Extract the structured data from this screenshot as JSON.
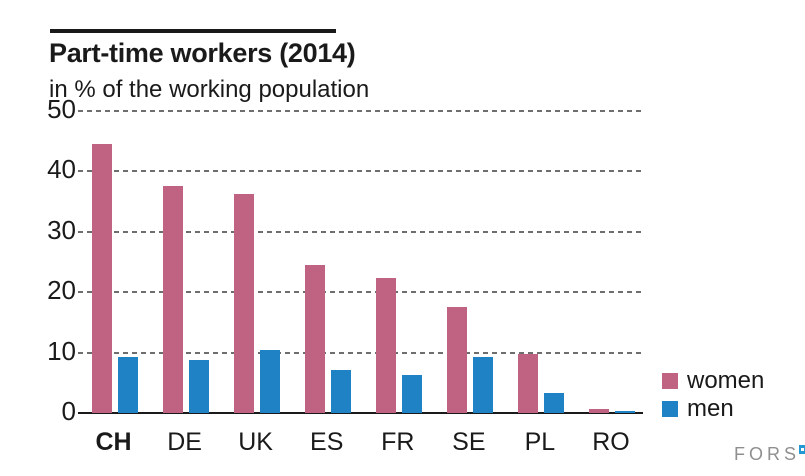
{
  "header": {
    "title": "Part-time workers (2014)",
    "subtitle": "in % of the working population"
  },
  "chart_data": {
    "type": "bar",
    "title": "Part-time workers (2014)",
    "subtitle": "in % of the working population",
    "categories": [
      "CH",
      "DE",
      "UK",
      "ES",
      "FR",
      "SE",
      "PL",
      "RO"
    ],
    "emphasized_category": "CH",
    "series": [
      {
        "name": "women",
        "color": "#c06282",
        "values": [
          44.5,
          37.5,
          36.3,
          24.5,
          22.4,
          17.6,
          9.7,
          0.7
        ]
      },
      {
        "name": "men",
        "color": "#1e82c4",
        "values": [
          9.3,
          8.8,
          10.5,
          7.1,
          6.3,
          9.3,
          3.3,
          0.3
        ]
      }
    ],
    "ylim": [
      0,
      50
    ],
    "yticks": [
      0,
      10,
      20,
      30,
      40,
      50
    ],
    "grid": "horizontal-dashed",
    "legend_position": "right-bottom"
  },
  "legend": {
    "items": [
      {
        "label": "women",
        "color": "#c06282"
      },
      {
        "label": "men",
        "color": "#1e82c4"
      }
    ]
  },
  "footer": {
    "brand": "FORS"
  }
}
